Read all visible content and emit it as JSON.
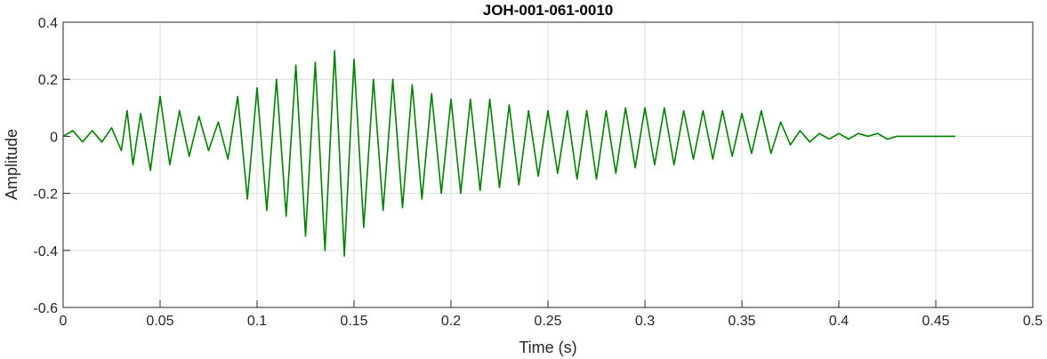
{
  "chart_data": {
    "type": "line",
    "title": "JOH-001-061-0010",
    "xlabel": "Time (s)",
    "ylabel": "Amplitude",
    "xlim": [
      0,
      0.5
    ],
    "ylim": [
      -0.6,
      0.4
    ],
    "grid": true,
    "x_ticks": [
      "0",
      "0.05",
      "0.1",
      "0.15",
      "0.2",
      "0.25",
      "0.3",
      "0.35",
      "0.4",
      "0.45",
      "0.5"
    ],
    "y_ticks": [
      "-0.6",
      "-0.4",
      "-0.2",
      "0",
      "0.2",
      "0.4"
    ],
    "series": [
      {
        "color": "#008000",
        "x": [
          0,
          0.005,
          0.01,
          0.015,
          0.02,
          0.025,
          0.03,
          0.033,
          0.036,
          0.04,
          0.045,
          0.05,
          0.055,
          0.06,
          0.065,
          0.07,
          0.075,
          0.08,
          0.085,
          0.09,
          0.095,
          0.1,
          0.105,
          0.11,
          0.115,
          0.12,
          0.125,
          0.13,
          0.135,
          0.14,
          0.145,
          0.15,
          0.155,
          0.16,
          0.165,
          0.17,
          0.175,
          0.18,
          0.185,
          0.19,
          0.195,
          0.2,
          0.205,
          0.21,
          0.215,
          0.22,
          0.225,
          0.23,
          0.235,
          0.24,
          0.245,
          0.25,
          0.255,
          0.26,
          0.265,
          0.27,
          0.275,
          0.28,
          0.285,
          0.29,
          0.295,
          0.3,
          0.305,
          0.31,
          0.315,
          0.32,
          0.325,
          0.33,
          0.335,
          0.34,
          0.345,
          0.35,
          0.355,
          0.36,
          0.365,
          0.37,
          0.375,
          0.38,
          0.385,
          0.39,
          0.395,
          0.4,
          0.405,
          0.41,
          0.415,
          0.42,
          0.425,
          0.43,
          0.435,
          0.44,
          0.445,
          0.45,
          0.455,
          0.46
        ],
        "y": [
          0,
          0.02,
          -0.02,
          0.02,
          -0.02,
          0.03,
          -0.05,
          0.09,
          -0.1,
          0.08,
          -0.12,
          0.14,
          -0.1,
          0.09,
          -0.07,
          0.07,
          -0.05,
          0.05,
          -0.08,
          0.14,
          -0.22,
          0.17,
          -0.26,
          0.2,
          -0.28,
          0.25,
          -0.35,
          0.26,
          -0.4,
          0.3,
          -0.42,
          0.27,
          -0.32,
          0.2,
          -0.26,
          0.2,
          -0.25,
          0.18,
          -0.22,
          0.15,
          -0.2,
          0.13,
          -0.2,
          0.13,
          -0.19,
          0.13,
          -0.18,
          0.11,
          -0.17,
          0.09,
          -0.14,
          0.09,
          -0.13,
          0.09,
          -0.15,
          0.09,
          -0.15,
          0.09,
          -0.13,
          0.1,
          -0.11,
          0.1,
          -0.1,
          0.1,
          -0.1,
          0.09,
          -0.08,
          0.09,
          -0.08,
          0.09,
          -0.07,
          0.08,
          -0.06,
          0.09,
          -0.06,
          0.05,
          -0.03,
          0.02,
          -0.02,
          0.01,
          -0.01,
          0.01,
          -0.01,
          0.01,
          0,
          0.01,
          -0.01,
          0,
          0,
          0,
          0,
          0,
          0,
          0
        ]
      }
    ]
  }
}
